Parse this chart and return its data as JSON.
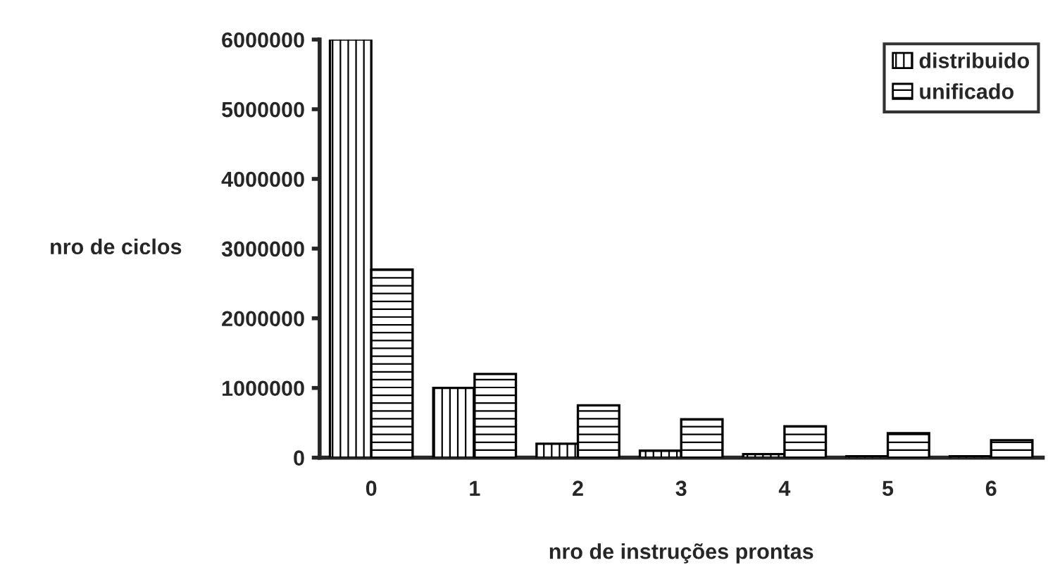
{
  "chart_data": {
    "type": "bar",
    "xlabel": "nro de instruções prontas",
    "ylabel": "nro de ciclos",
    "categories": [
      "0",
      "1",
      "2",
      "3",
      "4",
      "5",
      "6"
    ],
    "series": [
      {
        "name": "distribuido",
        "color": "#000000",
        "values": [
          6000000,
          1000000,
          200000,
          100000,
          50000,
          20000,
          20000
        ]
      },
      {
        "name": "unificado",
        "color": "#000000",
        "values": [
          2700000,
          1200000,
          750000,
          550000,
          450000,
          350000,
          250000
        ]
      }
    ],
    "ylim": [
      0,
      6000000
    ],
    "yticks": [
      0,
      1000000,
      2000000,
      3000000,
      4000000,
      5000000,
      6000000
    ],
    "grid": false,
    "legend": "top right"
  }
}
